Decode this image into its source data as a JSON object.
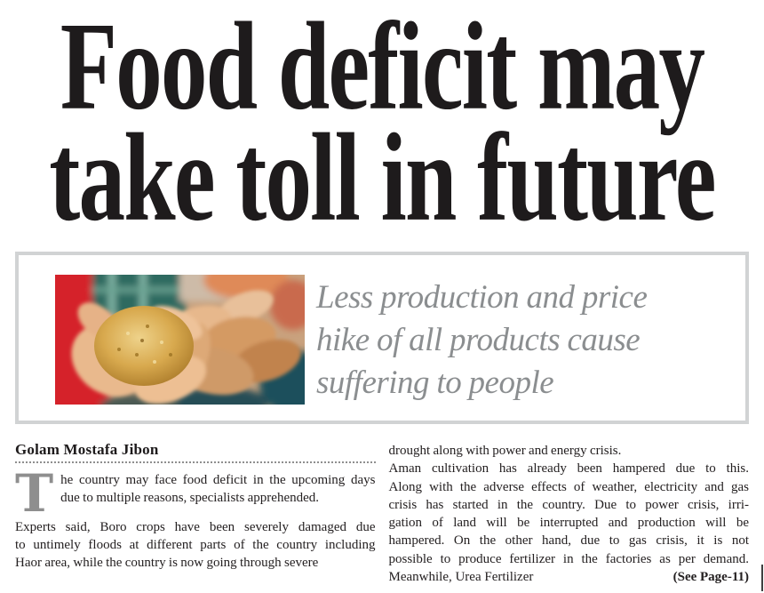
{
  "headline": {
    "line1": "Food deficit may",
    "line2": "take toll in future"
  },
  "feature_box": {
    "photo_alt": "hands sharing wheat grains among many outstretched hands",
    "pull_quote_lines": [
      {
        "t": "Less production and price",
        "j": false
      },
      {
        "t": "hike of all products cause",
        "j": false
      },
      {
        "t": "suffering to people",
        "j": false
      }
    ]
  },
  "article": {
    "byline": "Golam Mostafa Jibon",
    "drop_cap": "T",
    "col1_para1_lines": [
      {
        "t": "he country may face food deficit in the upcoming days",
        "j": true
      },
      {
        "t": "due to multiple reasons, specialists apprehended.",
        "j": false
      }
    ],
    "col1_para2_lines": [
      {
        "t": "Experts said, Boro crops have been severely damaged due",
        "j": true
      },
      {
        "t": "to untimely floods at different parts of the country including",
        "j": true
      },
      {
        "t": "Haor area, while the country is now going through severe",
        "j": false
      }
    ],
    "col2_lines": [
      {
        "t": "drought along with power and energy crisis.",
        "j": false
      },
      {
        "t": "Aman cultivation has already been hampered due to this.",
        "j": true
      },
      {
        "t": "Along with the adverse effects of weather, electricity and gas",
        "j": true
      },
      {
        "t": "crisis has started in the country. Due to power crisis, irri-",
        "j": true
      },
      {
        "t": "gation of land will be interrupted and production will be",
        "j": true
      },
      {
        "t": "hampered. On the other hand, due to gas crisis, it is not",
        "j": true
      },
      {
        "t": "possible to produce fertilizer in the factories as per demand.",
        "j": true
      }
    ],
    "continuation_text": "Meanwhile, Urea Fertilizer",
    "jump_reference": "(See Page-11)"
  },
  "colors": {
    "headline_text": "#1e1b1c",
    "body_text": "#242021",
    "muted_gray": "#8b8e90",
    "drop_cap_gray": "#8e8e8e",
    "box_border": "#d1d3d4"
  }
}
